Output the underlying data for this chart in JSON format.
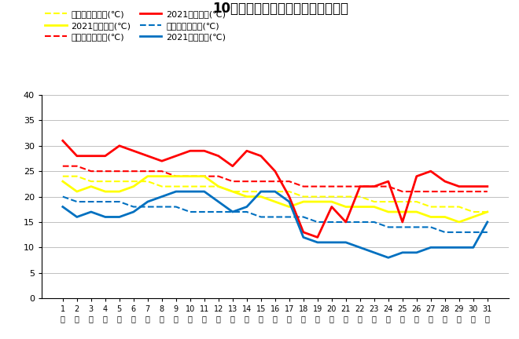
{
  "title": "10月最高・最低・平均気温（日別）",
  "days": [
    1,
    2,
    3,
    4,
    5,
    6,
    7,
    8,
    9,
    10,
    11,
    12,
    13,
    14,
    15,
    16,
    17,
    18,
    19,
    20,
    21,
    22,
    23,
    24,
    25,
    26,
    27,
    28,
    29,
    30,
    31
  ],
  "avg_2021": [
    23,
    21,
    22,
    21,
    21,
    22,
    24,
    24,
    24,
    24,
    24,
    22,
    21,
    20,
    20,
    19,
    18,
    19,
    19,
    19,
    18,
    18,
    18,
    17,
    17,
    17,
    16,
    16,
    15,
    16,
    17
  ],
  "max_2021": [
    31,
    28,
    28,
    28,
    30,
    29,
    28,
    27,
    28,
    29,
    29,
    28,
    26,
    29,
    28,
    25,
    20,
    13,
    12,
    18,
    15,
    22,
    22,
    23,
    15,
    24,
    25,
    23,
    22,
    22,
    22
  ],
  "min_2021": [
    18,
    16,
    17,
    16,
    16,
    17,
    19,
    20,
    21,
    21,
    21,
    19,
    17,
    18,
    21,
    21,
    19,
    12,
    11,
    11,
    11,
    10,
    9,
    8,
    9,
    9,
    10,
    10,
    10,
    10,
    15
  ],
  "avg_normal": [
    24,
    24,
    23,
    23,
    23,
    23,
    23,
    22,
    22,
    22,
    22,
    22,
    21,
    21,
    21,
    21,
    21,
    20,
    20,
    20,
    20,
    20,
    19,
    19,
    19,
    19,
    18,
    18,
    18,
    17,
    17
  ],
  "max_normal": [
    26,
    26,
    25,
    25,
    25,
    25,
    25,
    25,
    24,
    24,
    24,
    24,
    23,
    23,
    23,
    23,
    23,
    22,
    22,
    22,
    22,
    22,
    22,
    22,
    21,
    21,
    21,
    21,
    21,
    21,
    21
  ],
  "min_normal": [
    20,
    19,
    19,
    19,
    19,
    18,
    18,
    18,
    18,
    17,
    17,
    17,
    17,
    17,
    16,
    16,
    16,
    16,
    15,
    15,
    15,
    15,
    15,
    14,
    14,
    14,
    14,
    13,
    13,
    13,
    13
  ],
  "color_avg": "#ffff00",
  "color_max": "#ff0000",
  "color_min": "#0070c0",
  "legend_labels": [
    "平均気温平年値(℃)",
    "2021平均気温(℃)",
    "最高気温平年値(℃)",
    "2021最高気温(℃)",
    "最低気温平年値(℃)",
    "2021最低気温(℃)"
  ],
  "ylim": [
    0,
    40
  ],
  "yticks": [
    0,
    5,
    10,
    15,
    20,
    25,
    30,
    35,
    40
  ]
}
